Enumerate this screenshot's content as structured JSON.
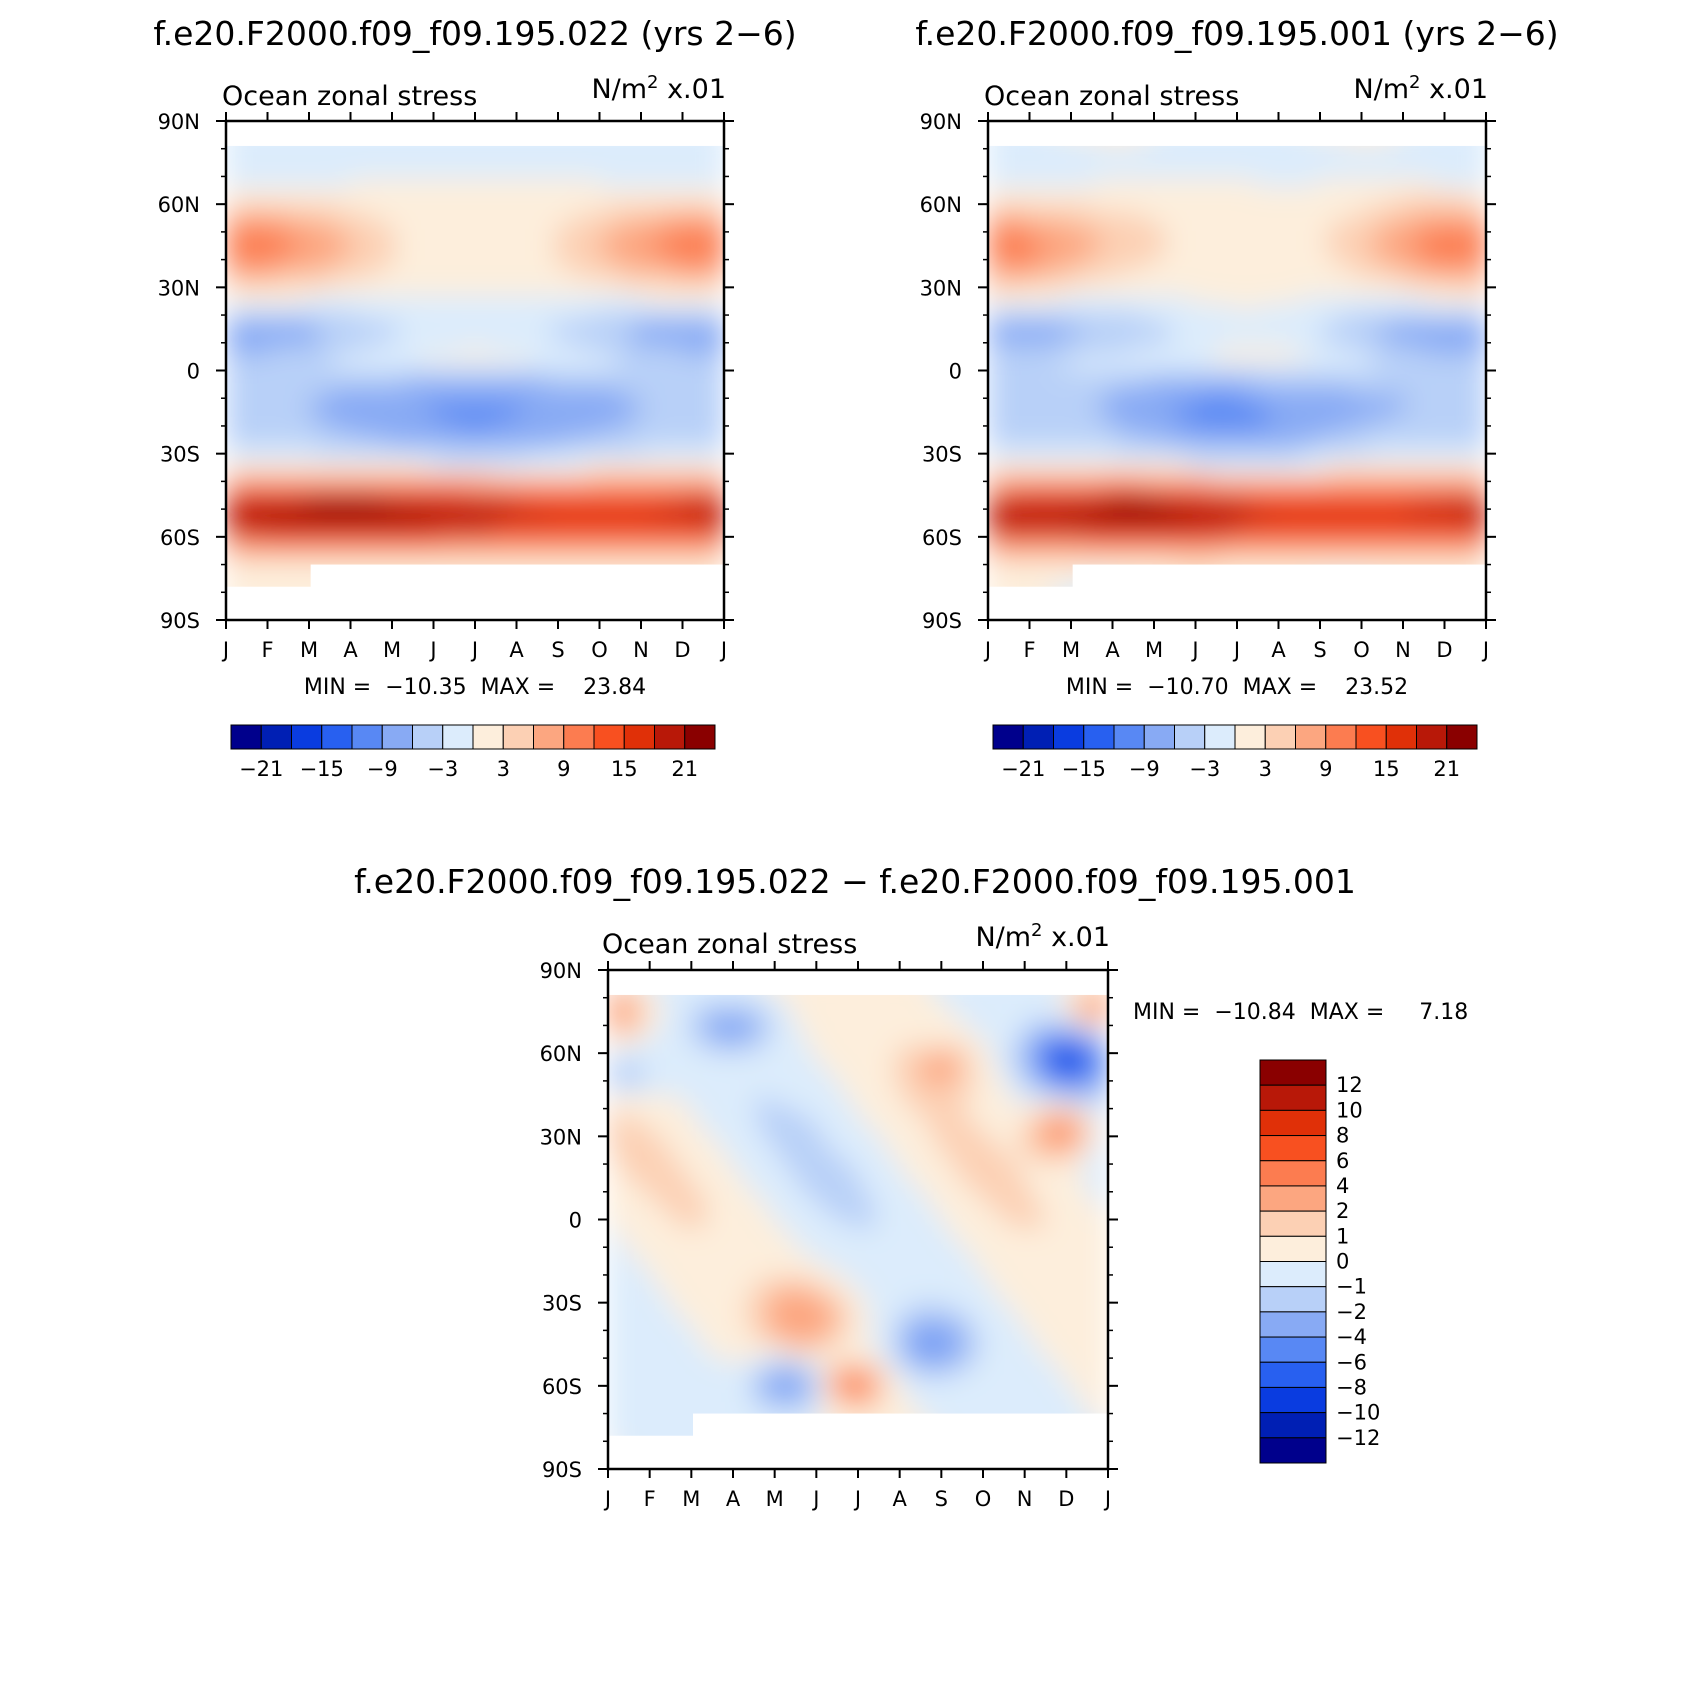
{
  "chart_data": [
    {
      "type": "heatmap",
      "title": "f.e20.F2000.f09_f09.195.022 (yrs 2−6)",
      "left_label": "Ocean zonal stress",
      "right_label_base": "N/m",
      "right_label_exp": "2",
      "right_label_tail": " x.01",
      "x_tick_labels": [
        "J",
        "F",
        "M",
        "A",
        "M",
        "J",
        "J",
        "A",
        "S",
        "O",
        "N",
        "D",
        "J"
      ],
      "y_tick_labels": [
        "90N",
        "60N",
        "30N",
        "0",
        "30S",
        "60S",
        "90S"
      ],
      "ylim": [
        -90,
        90
      ],
      "min_max_text": "MIN =  −10.35  MAX =    23.84",
      "min": -10.35,
      "max": 23.84,
      "colorbar": {
        "orientation": "horizontal",
        "labels": [
          "−21",
          "−15",
          "−9",
          "−3",
          "3",
          "9",
          "15",
          "21"
        ],
        "levels": [
          -24,
          -21,
          -18,
          -15,
          -12,
          -9,
          -6,
          -3,
          0,
          3,
          6,
          9,
          12,
          15,
          18,
          21,
          24
        ],
        "colors": [
          "#00008c",
          "#001fb4",
          "#0a3ce0",
          "#2860f0",
          "#5888f4",
          "#88aaf4",
          "#b8d0f8",
          "#dcecfc",
          "#fdeedc",
          "#fcd0b4",
          "#fca680",
          "#fc7c50",
          "#f85020",
          "#e03008",
          "#b81808",
          "#8a0000"
        ]
      }
    },
    {
      "type": "heatmap",
      "title": "f.e20.F2000.f09_f09.195.001 (yrs 2−6)",
      "left_label": "Ocean zonal stress",
      "right_label_base": "N/m",
      "right_label_exp": "2",
      "right_label_tail": " x.01",
      "x_tick_labels": [
        "J",
        "F",
        "M",
        "A",
        "M",
        "J",
        "J",
        "A",
        "S",
        "O",
        "N",
        "D",
        "J"
      ],
      "y_tick_labels": [
        "90N",
        "60N",
        "30N",
        "0",
        "30S",
        "60S",
        "90S"
      ],
      "ylim": [
        -90,
        90
      ],
      "min_max_text": "MIN =  −10.70  MAX =    23.52",
      "min": -10.7,
      "max": 23.52,
      "colorbar": {
        "orientation": "horizontal",
        "labels": [
          "−21",
          "−15",
          "−9",
          "−3",
          "3",
          "9",
          "15",
          "21"
        ],
        "levels": [
          -24,
          -21,
          -18,
          -15,
          -12,
          -9,
          -6,
          -3,
          0,
          3,
          6,
          9,
          12,
          15,
          18,
          21,
          24
        ],
        "colors": [
          "#00008c",
          "#001fb4",
          "#0a3ce0",
          "#2860f0",
          "#5888f4",
          "#88aaf4",
          "#b8d0f8",
          "#dcecfc",
          "#fdeedc",
          "#fcd0b4",
          "#fca680",
          "#fc7c50",
          "#f85020",
          "#e03008",
          "#b81808",
          "#8a0000"
        ]
      }
    },
    {
      "type": "heatmap",
      "title": "f.e20.F2000.f09_f09.195.022 − f.e20.F2000.f09_f09.195.001",
      "left_label": "Ocean zonal stress",
      "right_label_base": "N/m",
      "right_label_exp": "2",
      "right_label_tail": " x.01",
      "x_tick_labels": [
        "J",
        "F",
        "M",
        "A",
        "M",
        "J",
        "J",
        "A",
        "S",
        "O",
        "N",
        "D",
        "J"
      ],
      "y_tick_labels": [
        "90N",
        "60N",
        "30N",
        "0",
        "30S",
        "60S",
        "90S"
      ],
      "ylim": [
        -90,
        90
      ],
      "min_max_text": "MIN =  −10.84  MAX =     7.18",
      "min": -10.84,
      "max": 7.18,
      "colorbar": {
        "orientation": "vertical",
        "labels": [
          "12",
          "10",
          "8",
          "6",
          "4",
          "2",
          "1",
          "0",
          "−1",
          "−2",
          "−4",
          "−6",
          "−8",
          "−10",
          "−12"
        ],
        "levels": [
          14,
          12,
          10,
          8,
          6,
          4,
          2,
          1,
          0,
          -1,
          -2,
          -4,
          -6,
          -8,
          -10,
          -12,
          -14
        ],
        "colors": [
          "#8a0000",
          "#b81808",
          "#e03008",
          "#f85020",
          "#fc7c50",
          "#fca680",
          "#fcd0b4",
          "#fdeedc",
          "#dcecfc",
          "#b8d0f8",
          "#88aaf4",
          "#5888f4",
          "#2860f0",
          "#0a3ce0",
          "#001fb4",
          "#00008c"
        ]
      }
    }
  ]
}
